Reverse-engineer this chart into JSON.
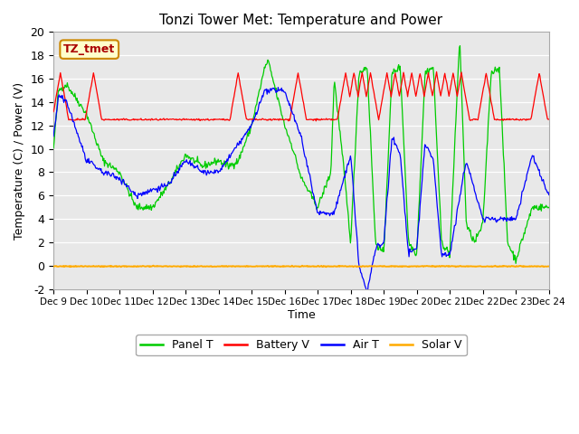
{
  "title": "Tonzi Tower Met: Temperature and Power",
  "xlabel": "Time",
  "ylabel": "Temperature (C) / Power (V)",
  "ylim": [
    -2,
    20
  ],
  "xlim": [
    0,
    15
  ],
  "xtick_positions": [
    0,
    1,
    2,
    3,
    4,
    5,
    6,
    7,
    8,
    9,
    10,
    11,
    12,
    13,
    14,
    15
  ],
  "xtick_labels": [
    "Dec 9",
    "Dec 10",
    "Dec 11",
    "Dec 12",
    "Dec 13",
    "Dec 14",
    "Dec 15",
    "Dec 16",
    "Dec 17",
    "Dec 18",
    "Dec 19",
    "Dec 20",
    "Dec 21",
    "Dec 22",
    "Dec 23",
    "Dec 24"
  ],
  "ytick_labels": [
    "-2",
    "0",
    "2",
    "4",
    "6",
    "8",
    "10",
    "12",
    "14",
    "16",
    "18",
    "20"
  ],
  "ytick_values": [
    -2,
    0,
    2,
    4,
    6,
    8,
    10,
    12,
    14,
    16,
    18,
    20
  ],
  "annotation_text": "TZ_tmet",
  "annotation_bg": "#ffffcc",
  "annotation_border": "#cc8800",
  "colors": {
    "panel_t": "#00cc00",
    "battery_v": "#ff0000",
    "air_t": "#0000ff",
    "solar_v": "#ffaa00"
  },
  "legend_labels": [
    "Panel T",
    "Battery V",
    "Air T",
    "Solar V"
  ],
  "plot_bg": "#e8e8e8"
}
